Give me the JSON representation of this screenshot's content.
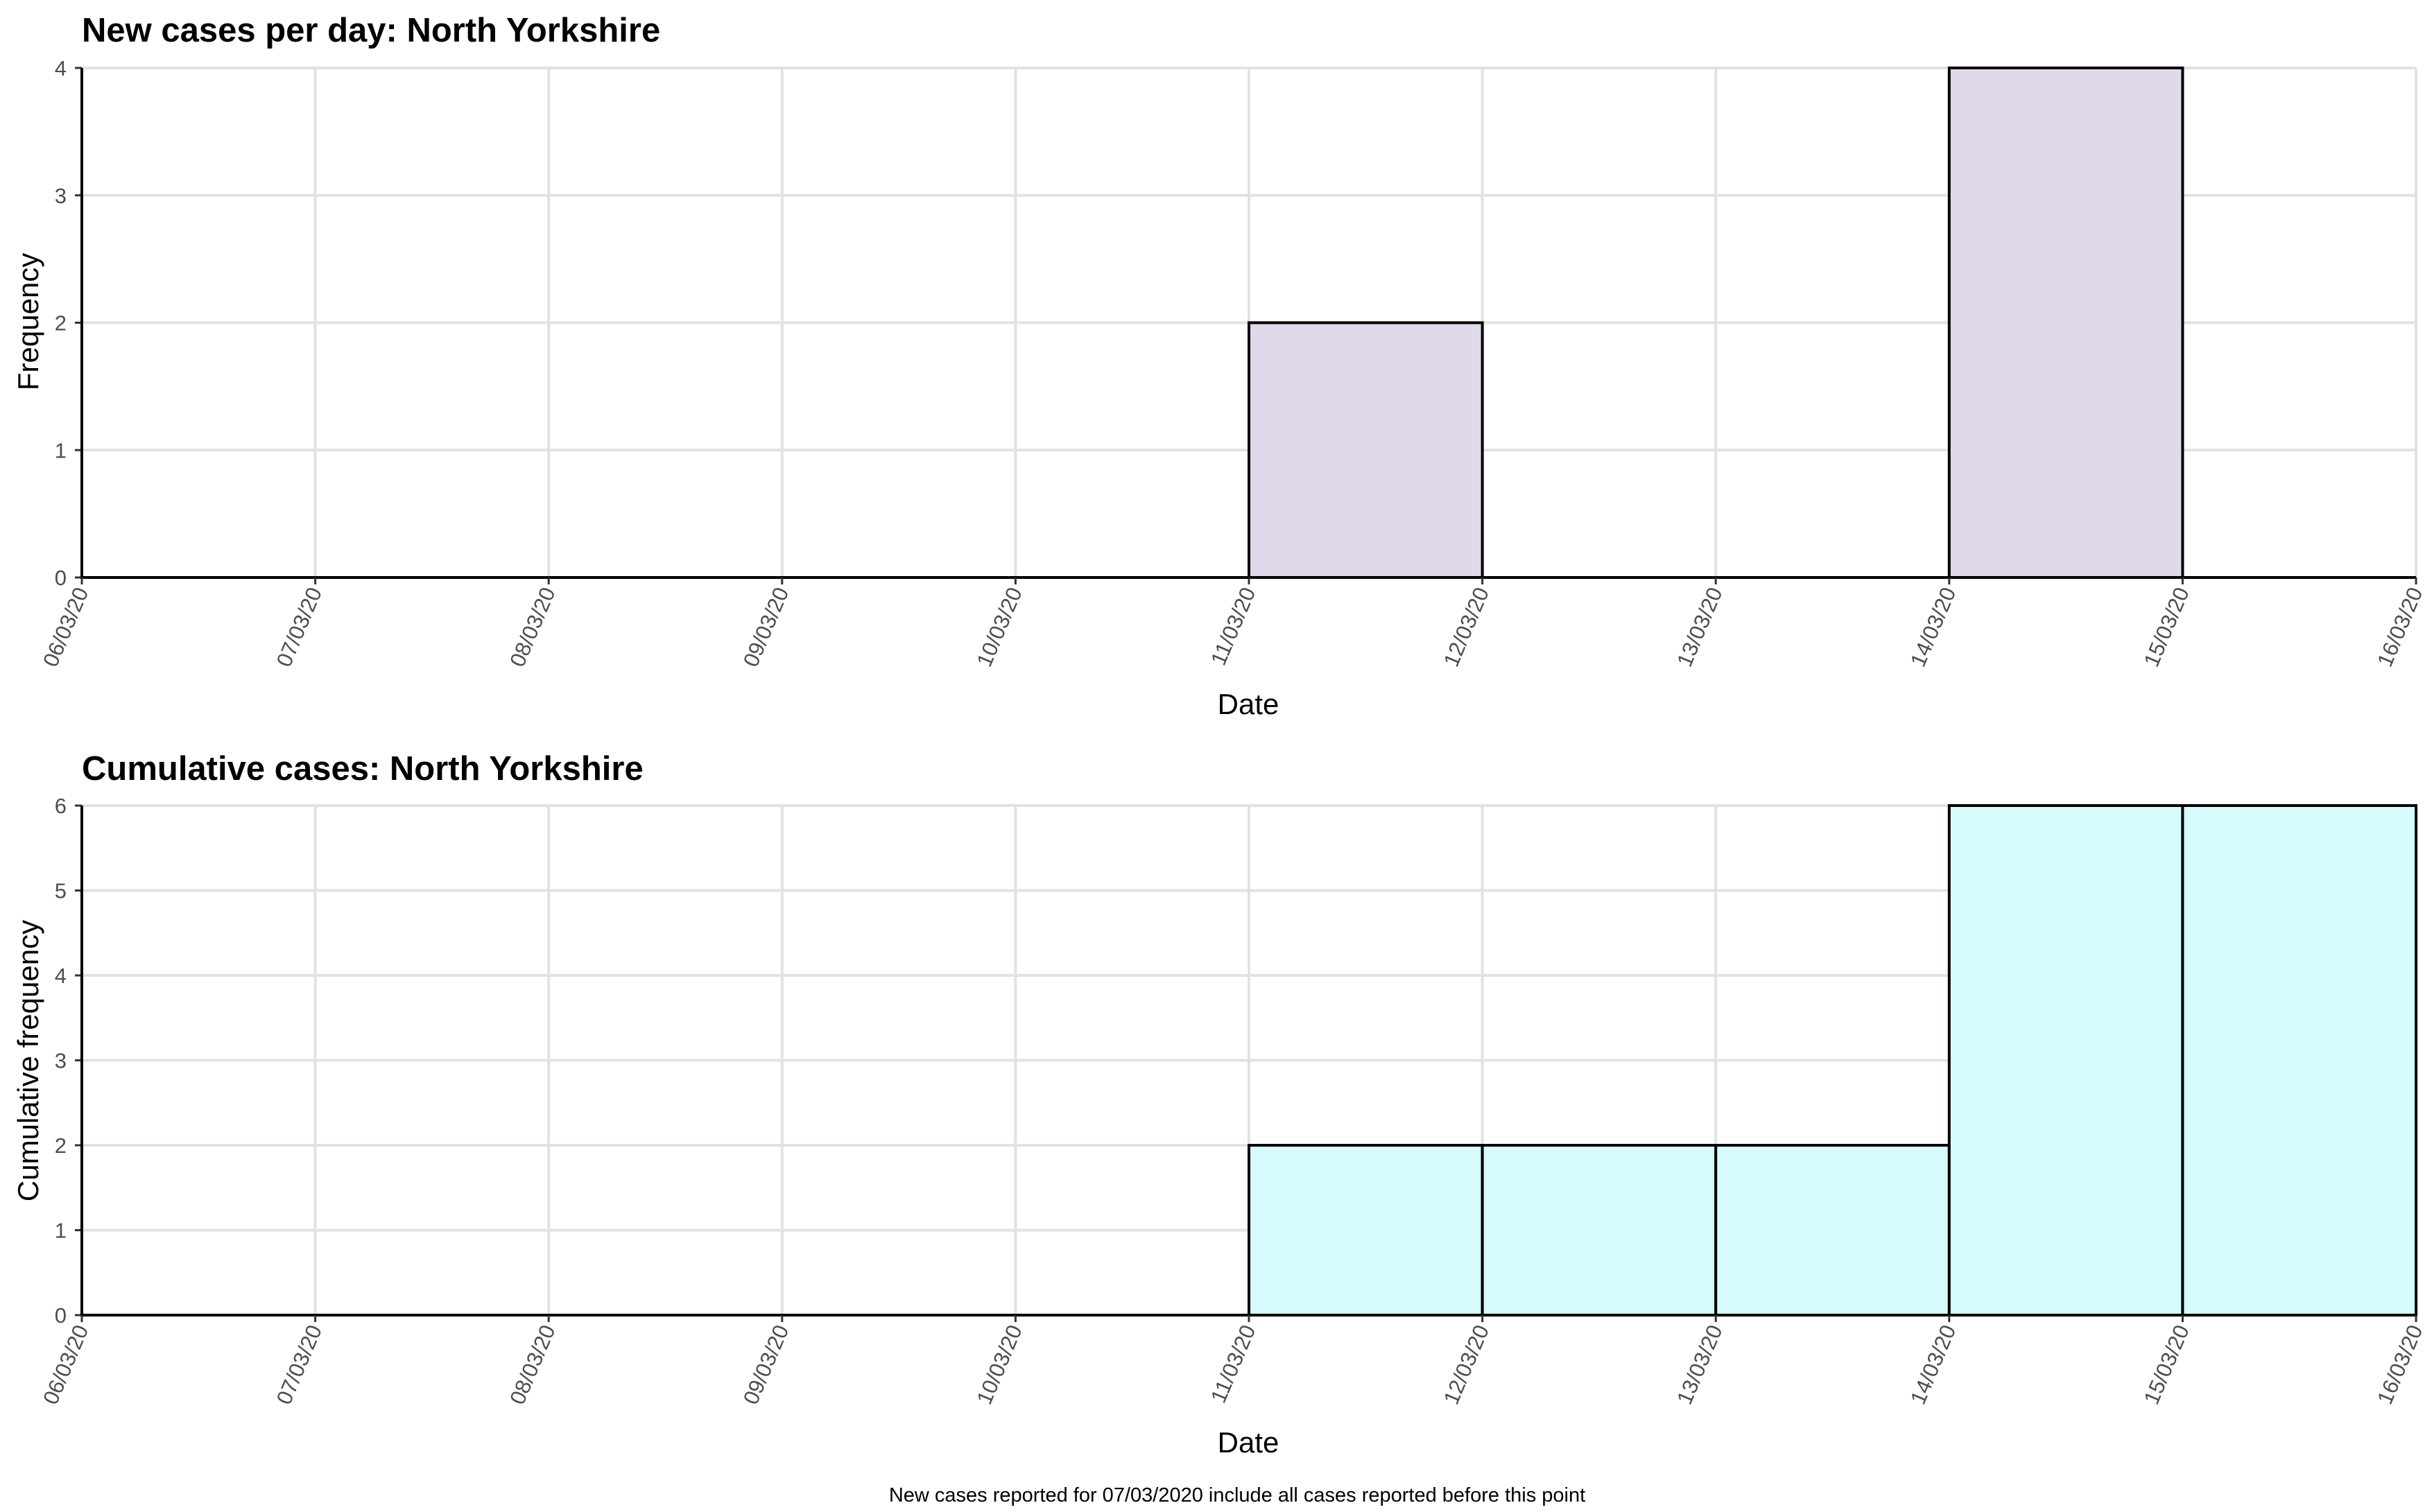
{
  "chart_data": [
    {
      "type": "bar",
      "title": "New cases per day: North Yorkshire",
      "xlabel": "Date",
      "ylabel": "Frequency",
      "ylim": [
        0,
        4
      ],
      "yticks": [
        "0",
        "1",
        "2",
        "3",
        "4"
      ],
      "xticks": [
        "06/03/20",
        "07/03/20",
        "08/03/20",
        "09/03/20",
        "10/03/20",
        "11/03/20",
        "12/03/20",
        "13/03/20",
        "14/03/20",
        "15/03/20",
        "16/03/20"
      ],
      "bins": [
        {
          "start": "06/03/20",
          "end": "07/03/20",
          "value": 0
        },
        {
          "start": "07/03/20",
          "end": "08/03/20",
          "value": 0
        },
        {
          "start": "08/03/20",
          "end": "09/03/20",
          "value": 0
        },
        {
          "start": "09/03/20",
          "end": "10/03/20",
          "value": 0
        },
        {
          "start": "10/03/20",
          "end": "11/03/20",
          "value": 0
        },
        {
          "start": "11/03/20",
          "end": "12/03/20",
          "value": 2
        },
        {
          "start": "12/03/20",
          "end": "13/03/20",
          "value": 0
        },
        {
          "start": "13/03/20",
          "end": "14/03/20",
          "value": 0
        },
        {
          "start": "14/03/20",
          "end": "15/03/20",
          "value": 4
        },
        {
          "start": "15/03/20",
          "end": "16/03/20",
          "value": 0
        }
      ],
      "bar_color": "#dfd9e9",
      "grid": true
    },
    {
      "type": "bar",
      "title": "Cumulative cases: North Yorkshire",
      "xlabel": "Date",
      "ylabel": "Cumulative frequency",
      "ylim": [
        0,
        6
      ],
      "yticks": [
        "0",
        "1",
        "2",
        "3",
        "4",
        "5",
        "6"
      ],
      "xticks": [
        "06/03/20",
        "07/03/20",
        "08/03/20",
        "09/03/20",
        "10/03/20",
        "11/03/20",
        "12/03/20",
        "13/03/20",
        "14/03/20",
        "15/03/20",
        "16/03/20"
      ],
      "bins": [
        {
          "start": "06/03/20",
          "end": "07/03/20",
          "value": 0
        },
        {
          "start": "07/03/20",
          "end": "08/03/20",
          "value": 0
        },
        {
          "start": "08/03/20",
          "end": "09/03/20",
          "value": 0
        },
        {
          "start": "09/03/20",
          "end": "10/03/20",
          "value": 0
        },
        {
          "start": "10/03/20",
          "end": "11/03/20",
          "value": 0
        },
        {
          "start": "11/03/20",
          "end": "12/03/20",
          "value": 2
        },
        {
          "start": "12/03/20",
          "end": "13/03/20",
          "value": 2
        },
        {
          "start": "13/03/20",
          "end": "14/03/20",
          "value": 2
        },
        {
          "start": "14/03/20",
          "end": "15/03/20",
          "value": 6
        },
        {
          "start": "15/03/20",
          "end": "16/03/20",
          "value": 6
        }
      ],
      "bar_color": "#d6fbfc",
      "grid": true
    }
  ],
  "caption": "New cases reported for 07/03/2020 include all cases reported before this point"
}
